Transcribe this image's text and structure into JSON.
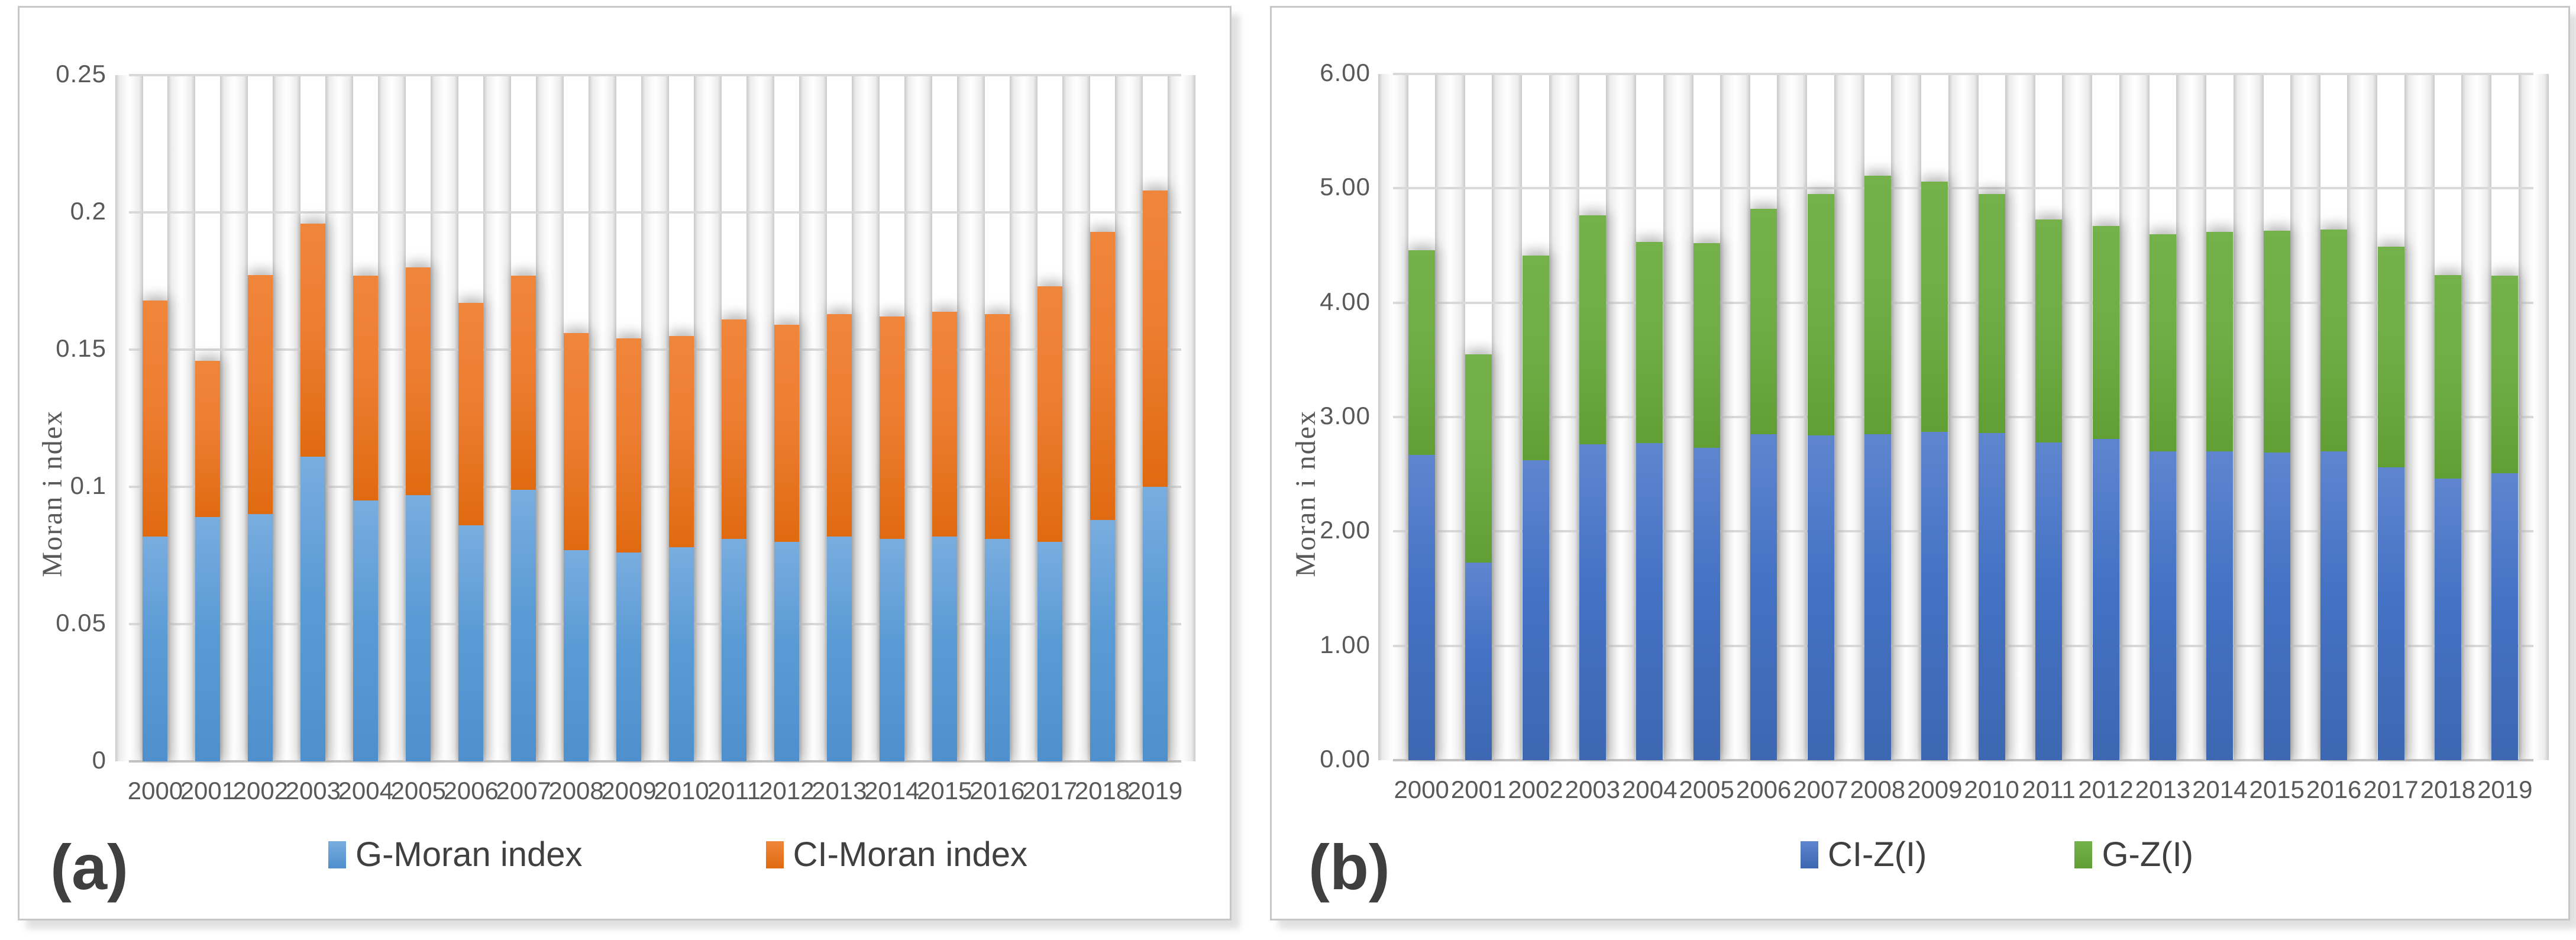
{
  "figure": {
    "background": "#ffffff",
    "panel_border_color": "#c7c7c7",
    "gridline_color": "#d9d9d9",
    "text_color": "#595959"
  },
  "chart_data": [
    {
      "type": "bar",
      "stacked": true,
      "panel_label": "(a)",
      "ylabel": "Moran i ndex",
      "xlabel": "",
      "ylim": [
        0,
        0.25
      ],
      "yticks": [
        "0.25",
        "0.2",
        "0.15",
        "0.1",
        "0.05",
        "0"
      ],
      "grid": true,
      "legend_position": "bottom",
      "categories": [
        "2000",
        "2001",
        "2002",
        "2003",
        "2004",
        "2005",
        "2006",
        "2007",
        "2008",
        "2009",
        "2010",
        "2011",
        "2012",
        "2013",
        "2014",
        "2015",
        "2016",
        "2017",
        "2018",
        "2019"
      ],
      "series": [
        {
          "name": "G-Moran index",
          "color": "#5B9BD5",
          "gradient": [
            "#79ADDF",
            "#5B9BD5",
            "#4F8FCC"
          ],
          "values": [
            0.082,
            0.089,
            0.09,
            0.111,
            0.095,
            0.097,
            0.086,
            0.099,
            0.077,
            0.076,
            0.078,
            0.081,
            0.08,
            0.082,
            0.081,
            0.082,
            0.081,
            0.08,
            0.088,
            0.1
          ]
        },
        {
          "name": "CI-Moran index",
          "color": "#ED7D31",
          "gradient": [
            "#F0863B",
            "#ED7D31",
            "#E06A10"
          ],
          "values": [
            0.086,
            0.057,
            0.087,
            0.085,
            0.082,
            0.083,
            0.081,
            0.078,
            0.079,
            0.078,
            0.077,
            0.08,
            0.079,
            0.081,
            0.081,
            0.082,
            0.082,
            0.093,
            0.105,
            0.108
          ]
        }
      ],
      "stack_totals": [
        0.168,
        0.146,
        0.177,
        0.196,
        0.177,
        0.18,
        0.167,
        0.177,
        0.156,
        0.154,
        0.155,
        0.161,
        0.159,
        0.163,
        0.162,
        0.164,
        0.163,
        0.173,
        0.193,
        0.208
      ]
    },
    {
      "type": "bar",
      "stacked": true,
      "panel_label": "(b)",
      "ylabel": "Moran i ndex",
      "xlabel": "",
      "ylim": [
        0,
        6
      ],
      "yticks": [
        "6.00",
        "5.00",
        "4.00",
        "3.00",
        "2.00",
        "1.00",
        "0.00"
      ],
      "grid": true,
      "legend_position": "bottom",
      "categories": [
        "2000",
        "2001",
        "2002",
        "2003",
        "2004",
        "2005",
        "2006",
        "2007",
        "2008",
        "2009",
        "2010",
        "2011",
        "2012",
        "2013",
        "2014",
        "2015",
        "2016",
        "2017",
        "2018",
        "2019"
      ],
      "series": [
        {
          "name": "CI-Z(I)",
          "color": "#4472C4",
          "gradient": [
            "#5F85CF",
            "#4472C4",
            "#3D67B1"
          ],
          "values": [
            2.67,
            1.73,
            2.62,
            2.76,
            2.77,
            2.73,
            2.85,
            2.84,
            2.85,
            2.87,
            2.86,
            2.78,
            2.81,
            2.7,
            2.7,
            2.69,
            2.7,
            2.56,
            2.46,
            2.51
          ]
        },
        {
          "name": "G-Z(I)",
          "color": "#70AD47",
          "gradient": [
            "#74B14A",
            "#70AD47",
            "#619F35"
          ],
          "values": [
            1.79,
            1.82,
            1.79,
            2.0,
            1.76,
            1.79,
            1.97,
            2.11,
            2.26,
            2.19,
            2.09,
            1.95,
            1.86,
            1.9,
            1.92,
            1.94,
            1.94,
            1.93,
            1.78,
            1.73
          ]
        }
      ],
      "stack_totals": [
        4.46,
        3.55,
        4.41,
        4.76,
        4.53,
        4.52,
        4.82,
        4.95,
        5.11,
        5.06,
        4.95,
        4.73,
        4.67,
        4.6,
        4.62,
        4.63,
        4.64,
        4.49,
        4.24,
        4.24
      ]
    }
  ]
}
